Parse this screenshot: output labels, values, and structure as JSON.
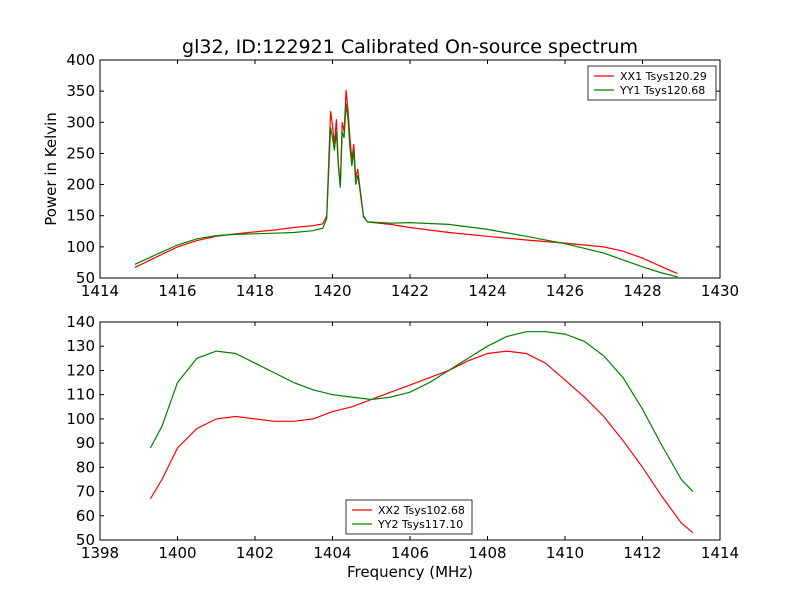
{
  "chart_data": [
    {
      "type": "line",
      "title": "gl32, ID:122921 Calibrated On-source spectrum",
      "xlabel": "",
      "ylabel": "Power in Kelvin",
      "xlim": [
        1414,
        1430
      ],
      "ylim": [
        50,
        400
      ],
      "xticks": [
        "1414",
        "1416",
        "1418",
        "1420",
        "1422",
        "1424",
        "1426",
        "1428",
        "1430"
      ],
      "yticks": [
        "50",
        "100",
        "150",
        "200",
        "250",
        "300",
        "350",
        "400"
      ],
      "grid": false,
      "legend_position": "top-right",
      "series": [
        {
          "name": "XX1 Tsys120.29",
          "color": "#ff0000",
          "points": [
            [
              1414.9,
              67
            ],
            [
              1415.5,
              85
            ],
            [
              1416.0,
              100
            ],
            [
              1416.5,
              110
            ],
            [
              1417.0,
              117
            ],
            [
              1417.5,
              121
            ],
            [
              1418.0,
              124
            ],
            [
              1418.5,
              127
            ],
            [
              1419.0,
              131
            ],
            [
              1419.5,
              134
            ],
            [
              1419.75,
              137
            ],
            [
              1419.85,
              150
            ],
            [
              1419.95,
              318
            ],
            [
              1420.0,
              295
            ],
            [
              1420.05,
              265
            ],
            [
              1420.1,
              305
            ],
            [
              1420.15,
              235
            ],
            [
              1420.2,
              200
            ],
            [
              1420.25,
              300
            ],
            [
              1420.3,
              285
            ],
            [
              1420.35,
              352
            ],
            [
              1420.4,
              320
            ],
            [
              1420.45,
              275
            ],
            [
              1420.5,
              240
            ],
            [
              1420.55,
              265
            ],
            [
              1420.6,
              210
            ],
            [
              1420.65,
              225
            ],
            [
              1420.7,
              200
            ],
            [
              1420.8,
              150
            ],
            [
              1420.9,
              140
            ],
            [
              1421.5,
              136
            ],
            [
              1422.0,
              131
            ],
            [
              1423.0,
              123
            ],
            [
              1424.0,
              117
            ],
            [
              1425.0,
              111
            ],
            [
              1426.0,
              106
            ],
            [
              1427.0,
              100
            ],
            [
              1427.5,
              93
            ],
            [
              1428.0,
              82
            ],
            [
              1428.5,
              68
            ],
            [
              1428.9,
              57
            ]
          ]
        },
        {
          "name": "YY1 Tsys120.68",
          "color": "#008000",
          "points": [
            [
              1414.9,
              72
            ],
            [
              1415.5,
              89
            ],
            [
              1416.0,
              103
            ],
            [
              1416.5,
              113
            ],
            [
              1417.0,
              118
            ],
            [
              1417.5,
              120
            ],
            [
              1418.0,
              121
            ],
            [
              1418.5,
              122
            ],
            [
              1419.0,
              123
            ],
            [
              1419.5,
              126
            ],
            [
              1419.75,
              130
            ],
            [
              1419.85,
              145
            ],
            [
              1419.95,
              292
            ],
            [
              1420.0,
              275
            ],
            [
              1420.05,
              255
            ],
            [
              1420.1,
              285
            ],
            [
              1420.15,
              230
            ],
            [
              1420.2,
              195
            ],
            [
              1420.25,
              285
            ],
            [
              1420.3,
              275
            ],
            [
              1420.35,
              330
            ],
            [
              1420.4,
              305
            ],
            [
              1420.45,
              260
            ],
            [
              1420.5,
              230
            ],
            [
              1420.55,
              255
            ],
            [
              1420.6,
              200
            ],
            [
              1420.65,
              215
            ],
            [
              1420.7,
              195
            ],
            [
              1420.8,
              148
            ],
            [
              1420.9,
              140
            ],
            [
              1421.5,
              138
            ],
            [
              1422.0,
              139
            ],
            [
              1423.0,
              136
            ],
            [
              1424.0,
              128
            ],
            [
              1425.0,
              117
            ],
            [
              1426.0,
              105
            ],
            [
              1427.0,
              90
            ],
            [
              1427.5,
              79
            ],
            [
              1428.0,
              68
            ],
            [
              1428.5,
              58
            ],
            [
              1428.9,
              52
            ]
          ]
        }
      ]
    },
    {
      "type": "line",
      "title": "",
      "xlabel": "Frequency (MHz)",
      "ylabel": "",
      "xlim": [
        1398,
        1414
      ],
      "ylim": [
        50,
        140
      ],
      "xticks": [
        "1398",
        "1400",
        "1402",
        "1404",
        "1406",
        "1408",
        "1410",
        "1412",
        "1414"
      ],
      "yticks": [
        "50",
        "60",
        "70",
        "80",
        "90",
        "100",
        "110",
        "120",
        "130",
        "140"
      ],
      "grid": false,
      "legend_position": "bottom-center",
      "series": [
        {
          "name": "XX2 Tsys102.68",
          "color": "#ff0000",
          "points": [
            [
              1399.3,
              67
            ],
            [
              1399.6,
              75
            ],
            [
              1400.0,
              88
            ],
            [
              1400.5,
              96
            ],
            [
              1401.0,
              100
            ],
            [
              1401.5,
              101
            ],
            [
              1402.0,
              100
            ],
            [
              1402.5,
              99
            ],
            [
              1403.0,
              99
            ],
            [
              1403.5,
              100
            ],
            [
              1404.0,
              103
            ],
            [
              1404.5,
              105
            ],
            [
              1405.0,
              108
            ],
            [
              1405.5,
              111
            ],
            [
              1406.0,
              114
            ],
            [
              1406.5,
              117
            ],
            [
              1407.0,
              120
            ],
            [
              1407.5,
              124
            ],
            [
              1408.0,
              127
            ],
            [
              1408.5,
              128
            ],
            [
              1409.0,
              127
            ],
            [
              1409.5,
              123
            ],
            [
              1410.0,
              116
            ],
            [
              1410.5,
              109
            ],
            [
              1411.0,
              101
            ],
            [
              1411.5,
              91
            ],
            [
              1412.0,
              80
            ],
            [
              1412.5,
              68
            ],
            [
              1413.0,
              57
            ],
            [
              1413.3,
              53
            ]
          ]
        },
        {
          "name": "YY2 Tsys117.10",
          "color": "#008000",
          "points": [
            [
              1399.3,
              88
            ],
            [
              1399.6,
              97
            ],
            [
              1400.0,
              115
            ],
            [
              1400.5,
              125
            ],
            [
              1401.0,
              128
            ],
            [
              1401.5,
              127
            ],
            [
              1402.0,
              123
            ],
            [
              1402.5,
              119
            ],
            [
              1403.0,
              115
            ],
            [
              1403.5,
              112
            ],
            [
              1404.0,
              110
            ],
            [
              1404.5,
              109
            ],
            [
              1405.0,
              108
            ],
            [
              1405.5,
              109
            ],
            [
              1406.0,
              111
            ],
            [
              1406.5,
              115
            ],
            [
              1407.0,
              120
            ],
            [
              1407.5,
              125
            ],
            [
              1408.0,
              130
            ],
            [
              1408.5,
              134
            ],
            [
              1409.0,
              136
            ],
            [
              1409.5,
              136
            ],
            [
              1410.0,
              135
            ],
            [
              1410.5,
              132
            ],
            [
              1411.0,
              126
            ],
            [
              1411.5,
              117
            ],
            [
              1412.0,
              104
            ],
            [
              1412.5,
              89
            ],
            [
              1413.0,
              75
            ],
            [
              1413.3,
              70
            ]
          ]
        }
      ]
    }
  ]
}
